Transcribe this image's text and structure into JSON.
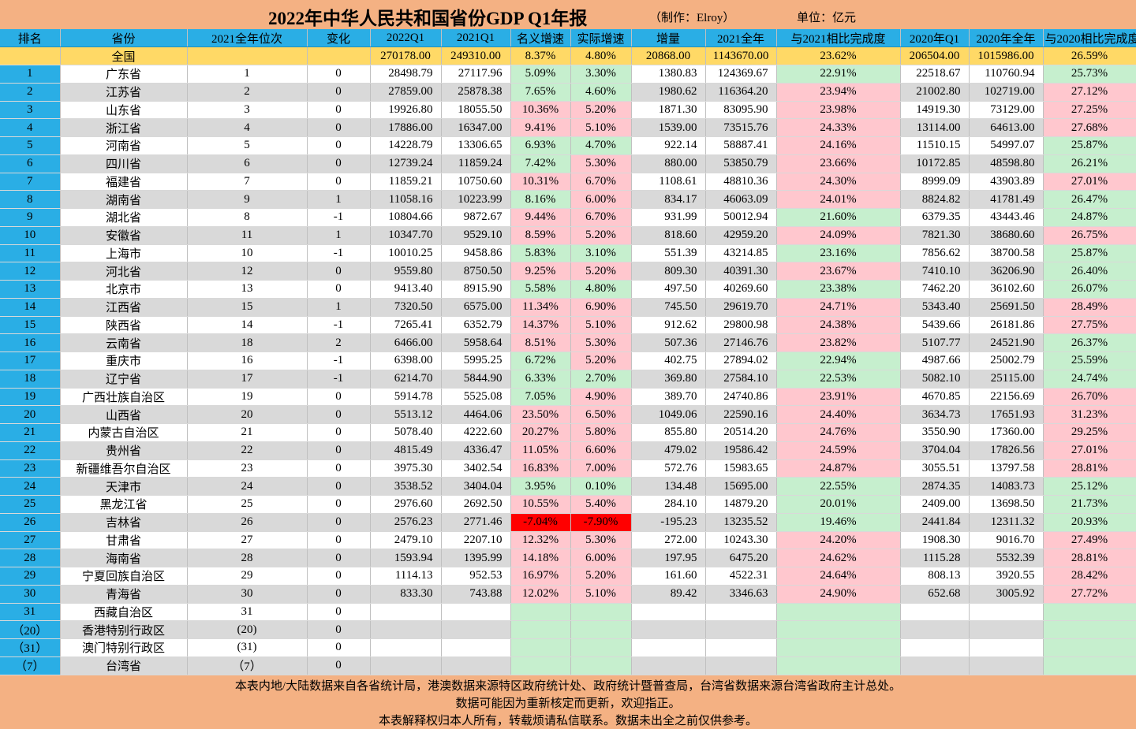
{
  "title": {
    "main": "2022年中华人民共和国省份GDP Q1年报",
    "maker": "（制作：Elroy）",
    "unit": "单位：亿元"
  },
  "headers": [
    "排名",
    "省份",
    "2021全年位次",
    "变化",
    "2022Q1",
    "2021Q1",
    "名义增速",
    "实际增速",
    "增量",
    "2021全年",
    "与2021相比完成度",
    "2020年Q1",
    "2020年全年",
    "与2020相比完成度"
  ],
  "total": [
    "",
    "全国",
    "",
    "",
    "270178.00",
    "249310.00",
    "8.37%",
    "4.80%",
    "20868.00",
    "1143670.00",
    "23.62%",
    "206504.00",
    "1015986.00",
    "26.59%"
  ],
  "rows": [
    [
      "1",
      "广东省",
      "1",
      "0",
      "28498.79",
      "27117.96",
      "5.09%",
      "3.30%",
      "1380.83",
      "124369.67",
      "22.91%",
      "22518.67",
      "110760.94",
      "25.73%"
    ],
    [
      "2",
      "江苏省",
      "2",
      "0",
      "27859.00",
      "25878.38",
      "7.65%",
      "4.60%",
      "1980.62",
      "116364.20",
      "23.94%",
      "21002.80",
      "102719.00",
      "27.12%"
    ],
    [
      "3",
      "山东省",
      "3",
      "0",
      "19926.80",
      "18055.50",
      "10.36%",
      "5.20%",
      "1871.30",
      "83095.90",
      "23.98%",
      "14919.30",
      "73129.00",
      "27.25%"
    ],
    [
      "4",
      "浙江省",
      "4",
      "0",
      "17886.00",
      "16347.00",
      "9.41%",
      "5.10%",
      "1539.00",
      "73515.76",
      "24.33%",
      "13114.00",
      "64613.00",
      "27.68%"
    ],
    [
      "5",
      "河南省",
      "5",
      "0",
      "14228.79",
      "13306.65",
      "6.93%",
      "4.70%",
      "922.14",
      "58887.41",
      "24.16%",
      "11510.15",
      "54997.07",
      "25.87%"
    ],
    [
      "6",
      "四川省",
      "6",
      "0",
      "12739.24",
      "11859.24",
      "7.42%",
      "5.30%",
      "880.00",
      "53850.79",
      "23.66%",
      "10172.85",
      "48598.80",
      "26.21%"
    ],
    [
      "7",
      "福建省",
      "7",
      "0",
      "11859.21",
      "10750.60",
      "10.31%",
      "6.70%",
      "1108.61",
      "48810.36",
      "24.30%",
      "8999.09",
      "43903.89",
      "27.01%"
    ],
    [
      "8",
      "湖南省",
      "9",
      "1",
      "11058.16",
      "10223.99",
      "8.16%",
      "6.00%",
      "834.17",
      "46063.09",
      "24.01%",
      "8824.82",
      "41781.49",
      "26.47%"
    ],
    [
      "9",
      "湖北省",
      "8",
      "-1",
      "10804.66",
      "9872.67",
      "9.44%",
      "6.70%",
      "931.99",
      "50012.94",
      "21.60%",
      "6379.35",
      "43443.46",
      "24.87%"
    ],
    [
      "10",
      "安徽省",
      "11",
      "1",
      "10347.70",
      "9529.10",
      "8.59%",
      "5.20%",
      "818.60",
      "42959.20",
      "24.09%",
      "7821.30",
      "38680.60",
      "26.75%"
    ],
    [
      "11",
      "上海市",
      "10",
      "-1",
      "10010.25",
      "9458.86",
      "5.83%",
      "3.10%",
      "551.39",
      "43214.85",
      "23.16%",
      "7856.62",
      "38700.58",
      "25.87%"
    ],
    [
      "12",
      "河北省",
      "12",
      "0",
      "9559.80",
      "8750.50",
      "9.25%",
      "5.20%",
      "809.30",
      "40391.30",
      "23.67%",
      "7410.10",
      "36206.90",
      "26.40%"
    ],
    [
      "13",
      "北京市",
      "13",
      "0",
      "9413.40",
      "8915.90",
      "5.58%",
      "4.80%",
      "497.50",
      "40269.60",
      "23.38%",
      "7462.20",
      "36102.60",
      "26.07%"
    ],
    [
      "14",
      "江西省",
      "15",
      "1",
      "7320.50",
      "6575.00",
      "11.34%",
      "6.90%",
      "745.50",
      "29619.70",
      "24.71%",
      "5343.40",
      "25691.50",
      "28.49%"
    ],
    [
      "15",
      "陕西省",
      "14",
      "-1",
      "7265.41",
      "6352.79",
      "14.37%",
      "5.10%",
      "912.62",
      "29800.98",
      "24.38%",
      "5439.66",
      "26181.86",
      "27.75%"
    ],
    [
      "16",
      "云南省",
      "18",
      "2",
      "6466.00",
      "5958.64",
      "8.51%",
      "5.30%",
      "507.36",
      "27146.76",
      "23.82%",
      "5107.77",
      "24521.90",
      "26.37%"
    ],
    [
      "17",
      "重庆市",
      "16",
      "-1",
      "6398.00",
      "5995.25",
      "6.72%",
      "5.20%",
      "402.75",
      "27894.02",
      "22.94%",
      "4987.66",
      "25002.79",
      "25.59%"
    ],
    [
      "18",
      "辽宁省",
      "17",
      "-1",
      "6214.70",
      "5844.90",
      "6.33%",
      "2.70%",
      "369.80",
      "27584.10",
      "22.53%",
      "5082.10",
      "25115.00",
      "24.74%"
    ],
    [
      "19",
      "广西壮族自治区",
      "19",
      "0",
      "5914.78",
      "5525.08",
      "7.05%",
      "4.90%",
      "389.70",
      "24740.86",
      "23.91%",
      "4670.85",
      "22156.69",
      "26.70%"
    ],
    [
      "20",
      "山西省",
      "20",
      "0",
      "5513.12",
      "4464.06",
      "23.50%",
      "6.50%",
      "1049.06",
      "22590.16",
      "24.40%",
      "3634.73",
      "17651.93",
      "31.23%"
    ],
    [
      "21",
      "内蒙古自治区",
      "21",
      "0",
      "5078.40",
      "4222.60",
      "20.27%",
      "5.80%",
      "855.80",
      "20514.20",
      "24.76%",
      "3550.90",
      "17360.00",
      "29.25%"
    ],
    [
      "22",
      "贵州省",
      "22",
      "0",
      "4815.49",
      "4336.47",
      "11.05%",
      "6.60%",
      "479.02",
      "19586.42",
      "24.59%",
      "3704.04",
      "17826.56",
      "27.01%"
    ],
    [
      "23",
      "新疆维吾尔自治区",
      "23",
      "0",
      "3975.30",
      "3402.54",
      "16.83%",
      "7.00%",
      "572.76",
      "15983.65",
      "24.87%",
      "3055.51",
      "13797.58",
      "28.81%"
    ],
    [
      "24",
      "天津市",
      "24",
      "0",
      "3538.52",
      "3404.04",
      "3.95%",
      "0.10%",
      "134.48",
      "15695.00",
      "22.55%",
      "2874.35",
      "14083.73",
      "25.12%"
    ],
    [
      "25",
      "黑龙江省",
      "25",
      "0",
      "2976.60",
      "2692.50",
      "10.55%",
      "5.40%",
      "284.10",
      "14879.20",
      "20.01%",
      "2409.00",
      "13698.50",
      "21.73%"
    ],
    [
      "26",
      "吉林省",
      "26",
      "0",
      "2576.23",
      "2771.46",
      "-7.04%",
      "-7.90%",
      "-195.23",
      "13235.52",
      "19.46%",
      "2441.84",
      "12311.32",
      "20.93%"
    ],
    [
      "27",
      "甘肃省",
      "27",
      "0",
      "2479.10",
      "2207.10",
      "12.32%",
      "5.30%",
      "272.00",
      "10243.30",
      "24.20%",
      "1908.30",
      "9016.70",
      "27.49%"
    ],
    [
      "28",
      "海南省",
      "28",
      "0",
      "1593.94",
      "1395.99",
      "14.18%",
      "6.00%",
      "197.95",
      "6475.20",
      "24.62%",
      "1115.28",
      "5532.39",
      "28.81%"
    ],
    [
      "29",
      "宁夏回族自治区",
      "29",
      "0",
      "1114.13",
      "952.53",
      "16.97%",
      "5.20%",
      "161.60",
      "4522.31",
      "24.64%",
      "808.13",
      "3920.55",
      "28.42%"
    ],
    [
      "30",
      "青海省",
      "30",
      "0",
      "833.30",
      "743.88",
      "12.02%",
      "5.10%",
      "89.42",
      "3346.63",
      "24.90%",
      "652.68",
      "3005.92",
      "27.72%"
    ],
    [
      "31",
      "西藏自治区",
      "31",
      "0",
      "",
      "",
      "",
      "",
      "",
      "",
      "",
      "",
      "",
      ""
    ],
    [
      "（20）",
      "香港特别行政区",
      "(20)",
      "0",
      "",
      "",
      "",
      "",
      "",
      "",
      "",
      "",
      "",
      ""
    ],
    [
      "（31）",
      "澳门特别行政区",
      "(31)",
      "0",
      "",
      "",
      "",
      "",
      "",
      "",
      "",
      "",
      "",
      ""
    ],
    [
      "（7）",
      "台湾省",
      "（7）",
      "0",
      "",
      "",
      "",
      "",
      "",
      "",
      "",
      "",
      "",
      ""
    ]
  ],
  "cell_colors": {
    "nominal": [
      "g",
      "g",
      "p",
      "p",
      "g",
      "g",
      "p",
      "g",
      "p",
      "p",
      "g",
      "p",
      "g",
      "p",
      "p",
      "p",
      "g",
      "g",
      "g",
      "p",
      "p",
      "p",
      "p",
      "g",
      "p",
      "r",
      "p",
      "p",
      "p",
      "p",
      "blank",
      "blank",
      "blank",
      "blank"
    ],
    "real": [
      "g",
      "g",
      "p",
      "p",
      "g",
      "p",
      "p",
      "p",
      "p",
      "p",
      "g",
      "p",
      "g",
      "p",
      "p",
      "p",
      "p",
      "g",
      "p",
      "p",
      "p",
      "p",
      "p",
      "g",
      "p",
      "r",
      "p",
      "p",
      "p",
      "p",
      "blank",
      "blank",
      "blank",
      "blank"
    ],
    "vs2021": [
      "g",
      "p",
      "p",
      "p",
      "p",
      "p",
      "p",
      "p",
      "g",
      "p",
      "g",
      "p",
      "g",
      "p",
      "p",
      "p",
      "g",
      "g",
      "p",
      "p",
      "p",
      "p",
      "p",
      "g",
      "g",
      "g",
      "p",
      "p",
      "p",
      "p",
      "blank",
      "blank",
      "blank",
      "blank"
    ],
    "vs2020": [
      "g",
      "p",
      "p",
      "p",
      "g",
      "g",
      "p",
      "g",
      "g",
      "p",
      "g",
      "g",
      "g",
      "p",
      "p",
      "g",
      "g",
      "g",
      "p",
      "p",
      "p",
      "p",
      "p",
      "g",
      "g",
      "g",
      "p",
      "p",
      "p",
      "p",
      "blank",
      "blank",
      "blank",
      "blank"
    ]
  },
  "footer": [
    "本表内地/大陆数据来自各省统计局，港澳数据来源特区政府统计处、政府统计暨普查局，台湾省数据来源台湾省政府主计总处。",
    "数据可能因为重新核定而更新，欢迎指正。",
    "本表解释权归本人所有，转载烦请私信联系。数据未出全之前仅供参考。"
  ]
}
